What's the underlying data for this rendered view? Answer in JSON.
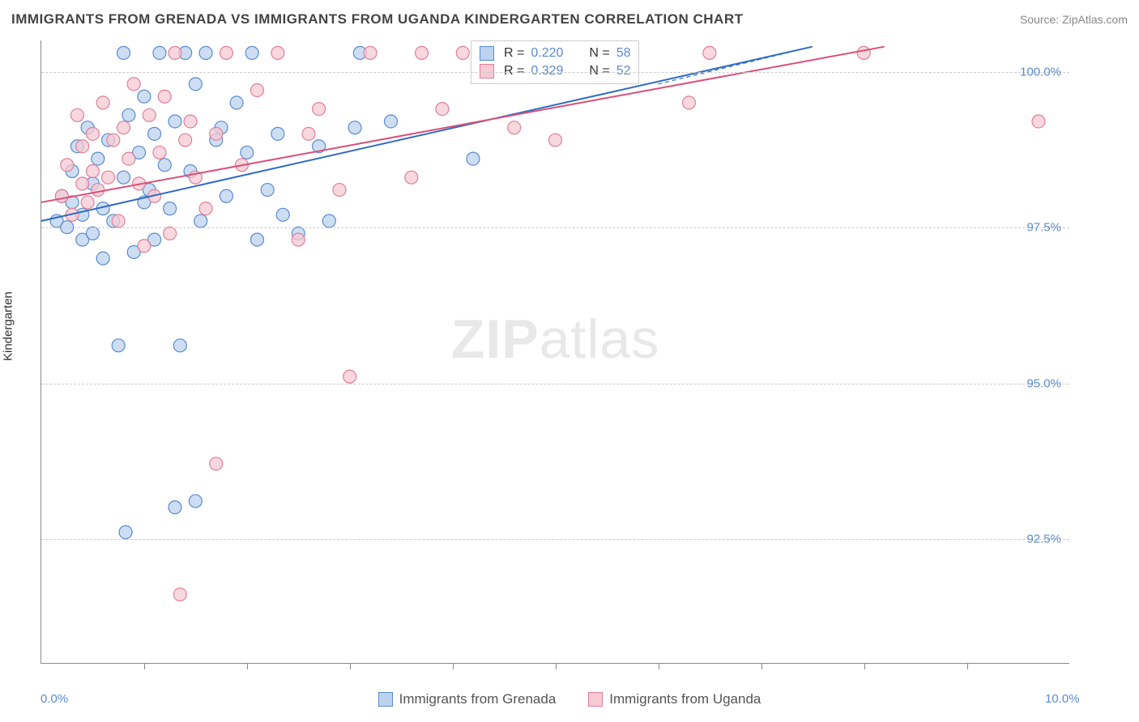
{
  "header": {
    "title": "IMMIGRANTS FROM GRENADA VS IMMIGRANTS FROM UGANDA KINDERGARTEN CORRELATION CHART",
    "source_prefix": "Source: ",
    "source_name": "ZipAtlas.com"
  },
  "axes": {
    "y_title": "Kindergarten",
    "x_min_label": "0.0%",
    "x_max_label": "10.0%",
    "x_min": 0,
    "x_max": 10,
    "y_min": 90.5,
    "y_max": 100.5,
    "y_ticks": [
      {
        "v": 100.0,
        "label": "100.0%"
      },
      {
        "v": 97.5,
        "label": "97.5%"
      },
      {
        "v": 95.0,
        "label": "95.0%"
      },
      {
        "v": 92.5,
        "label": "92.5%"
      }
    ],
    "x_tick_count": 10,
    "grid_color": "#cccccc"
  },
  "watermark": {
    "bold": "ZIP",
    "rest": "atlas"
  },
  "series": [
    {
      "key": "grenada",
      "label": "Immigrants from Grenada",
      "fill": "#bcd3ef",
      "stroke": "#5b8bd0",
      "line_color": "#2e6cc0",
      "marker_r": 8,
      "legend": {
        "r": "0.220",
        "n": "58"
      },
      "trend": {
        "x1": 0.0,
        "y1": 97.6,
        "x2": 7.5,
        "y2": 100.4
      },
      "points": [
        [
          0.15,
          97.6
        ],
        [
          0.2,
          98.0
        ],
        [
          0.25,
          97.5
        ],
        [
          0.3,
          97.9
        ],
        [
          0.3,
          98.4
        ],
        [
          0.35,
          98.8
        ],
        [
          0.4,
          97.3
        ],
        [
          0.4,
          97.7
        ],
        [
          0.45,
          99.1
        ],
        [
          0.5,
          97.4
        ],
        [
          0.5,
          98.2
        ],
        [
          0.55,
          98.6
        ],
        [
          0.6,
          97.0
        ],
        [
          0.6,
          97.8
        ],
        [
          0.65,
          98.9
        ],
        [
          0.7,
          97.6
        ],
        [
          0.75,
          95.6
        ],
        [
          0.8,
          100.3
        ],
        [
          0.8,
          98.3
        ],
        [
          0.82,
          92.6
        ],
        [
          0.85,
          99.3
        ],
        [
          0.9,
          97.1
        ],
        [
          0.95,
          98.7
        ],
        [
          1.0,
          97.9
        ],
        [
          1.0,
          99.6
        ],
        [
          1.05,
          98.1
        ],
        [
          1.1,
          97.3
        ],
        [
          1.1,
          99.0
        ],
        [
          1.15,
          100.3
        ],
        [
          1.2,
          98.5
        ],
        [
          1.25,
          97.8
        ],
        [
          1.3,
          93.0
        ],
        [
          1.3,
          99.2
        ],
        [
          1.35,
          95.6
        ],
        [
          1.4,
          100.3
        ],
        [
          1.45,
          98.4
        ],
        [
          1.5,
          93.1
        ],
        [
          1.5,
          99.8
        ],
        [
          1.55,
          97.6
        ],
        [
          1.6,
          100.3
        ],
        [
          1.7,
          98.9
        ],
        [
          1.75,
          99.1
        ],
        [
          1.8,
          98.0
        ],
        [
          1.9,
          99.5
        ],
        [
          2.0,
          98.7
        ],
        [
          2.05,
          100.3
        ],
        [
          2.1,
          97.3
        ],
        [
          2.2,
          98.1
        ],
        [
          2.3,
          99.0
        ],
        [
          2.35,
          97.7
        ],
        [
          2.5,
          97.4
        ],
        [
          2.7,
          98.8
        ],
        [
          2.8,
          97.6
        ],
        [
          3.05,
          99.1
        ],
        [
          3.1,
          100.3
        ],
        [
          3.4,
          99.2
        ],
        [
          4.2,
          98.6
        ],
        [
          4.3,
          100.3
        ]
      ]
    },
    {
      "key": "uganda",
      "label": "Immigrants from Uganda",
      "fill": "#f6c9d3",
      "stroke": "#e07f9a",
      "line_color": "#d94f77",
      "marker_r": 8,
      "legend": {
        "r": "0.329",
        "n": "52"
      },
      "trend": {
        "x1": 0.0,
        "y1": 97.9,
        "x2": 8.2,
        "y2": 100.4
      },
      "points": [
        [
          0.2,
          98.0
        ],
        [
          0.25,
          98.5
        ],
        [
          0.3,
          97.7
        ],
        [
          0.35,
          99.3
        ],
        [
          0.4,
          98.2
        ],
        [
          0.4,
          98.8
        ],
        [
          0.45,
          97.9
        ],
        [
          0.5,
          99.0
        ],
        [
          0.5,
          98.4
        ],
        [
          0.55,
          98.1
        ],
        [
          0.6,
          99.5
        ],
        [
          0.65,
          98.3
        ],
        [
          0.7,
          98.9
        ],
        [
          0.75,
          97.6
        ],
        [
          0.8,
          99.1
        ],
        [
          0.85,
          98.6
        ],
        [
          0.9,
          99.8
        ],
        [
          0.95,
          98.2
        ],
        [
          1.0,
          97.2
        ],
        [
          1.05,
          99.3
        ],
        [
          1.1,
          98.0
        ],
        [
          1.15,
          98.7
        ],
        [
          1.2,
          99.6
        ],
        [
          1.25,
          97.4
        ],
        [
          1.3,
          100.3
        ],
        [
          1.35,
          91.6
        ],
        [
          1.4,
          98.9
        ],
        [
          1.45,
          99.2
        ],
        [
          1.5,
          98.3
        ],
        [
          1.6,
          97.8
        ],
        [
          1.7,
          99.0
        ],
        [
          1.7,
          93.7
        ],
        [
          1.8,
          100.3
        ],
        [
          1.95,
          98.5
        ],
        [
          2.1,
          99.7
        ],
        [
          2.3,
          100.3
        ],
        [
          2.5,
          97.3
        ],
        [
          2.6,
          99.0
        ],
        [
          2.7,
          99.4
        ],
        [
          2.9,
          98.1
        ],
        [
          3.0,
          95.1
        ],
        [
          3.2,
          100.3
        ],
        [
          3.6,
          98.3
        ],
        [
          3.7,
          100.3
        ],
        [
          3.9,
          99.4
        ],
        [
          4.1,
          100.3
        ],
        [
          4.6,
          99.1
        ],
        [
          5.0,
          98.9
        ],
        [
          6.3,
          99.5
        ],
        [
          6.5,
          100.3
        ],
        [
          8.0,
          100.3
        ],
        [
          9.7,
          99.2
        ]
      ]
    }
  ],
  "colors": {
    "title": "#444444",
    "source": "#888888",
    "axis_value": "#5b8bd0",
    "background": "#ffffff"
  }
}
